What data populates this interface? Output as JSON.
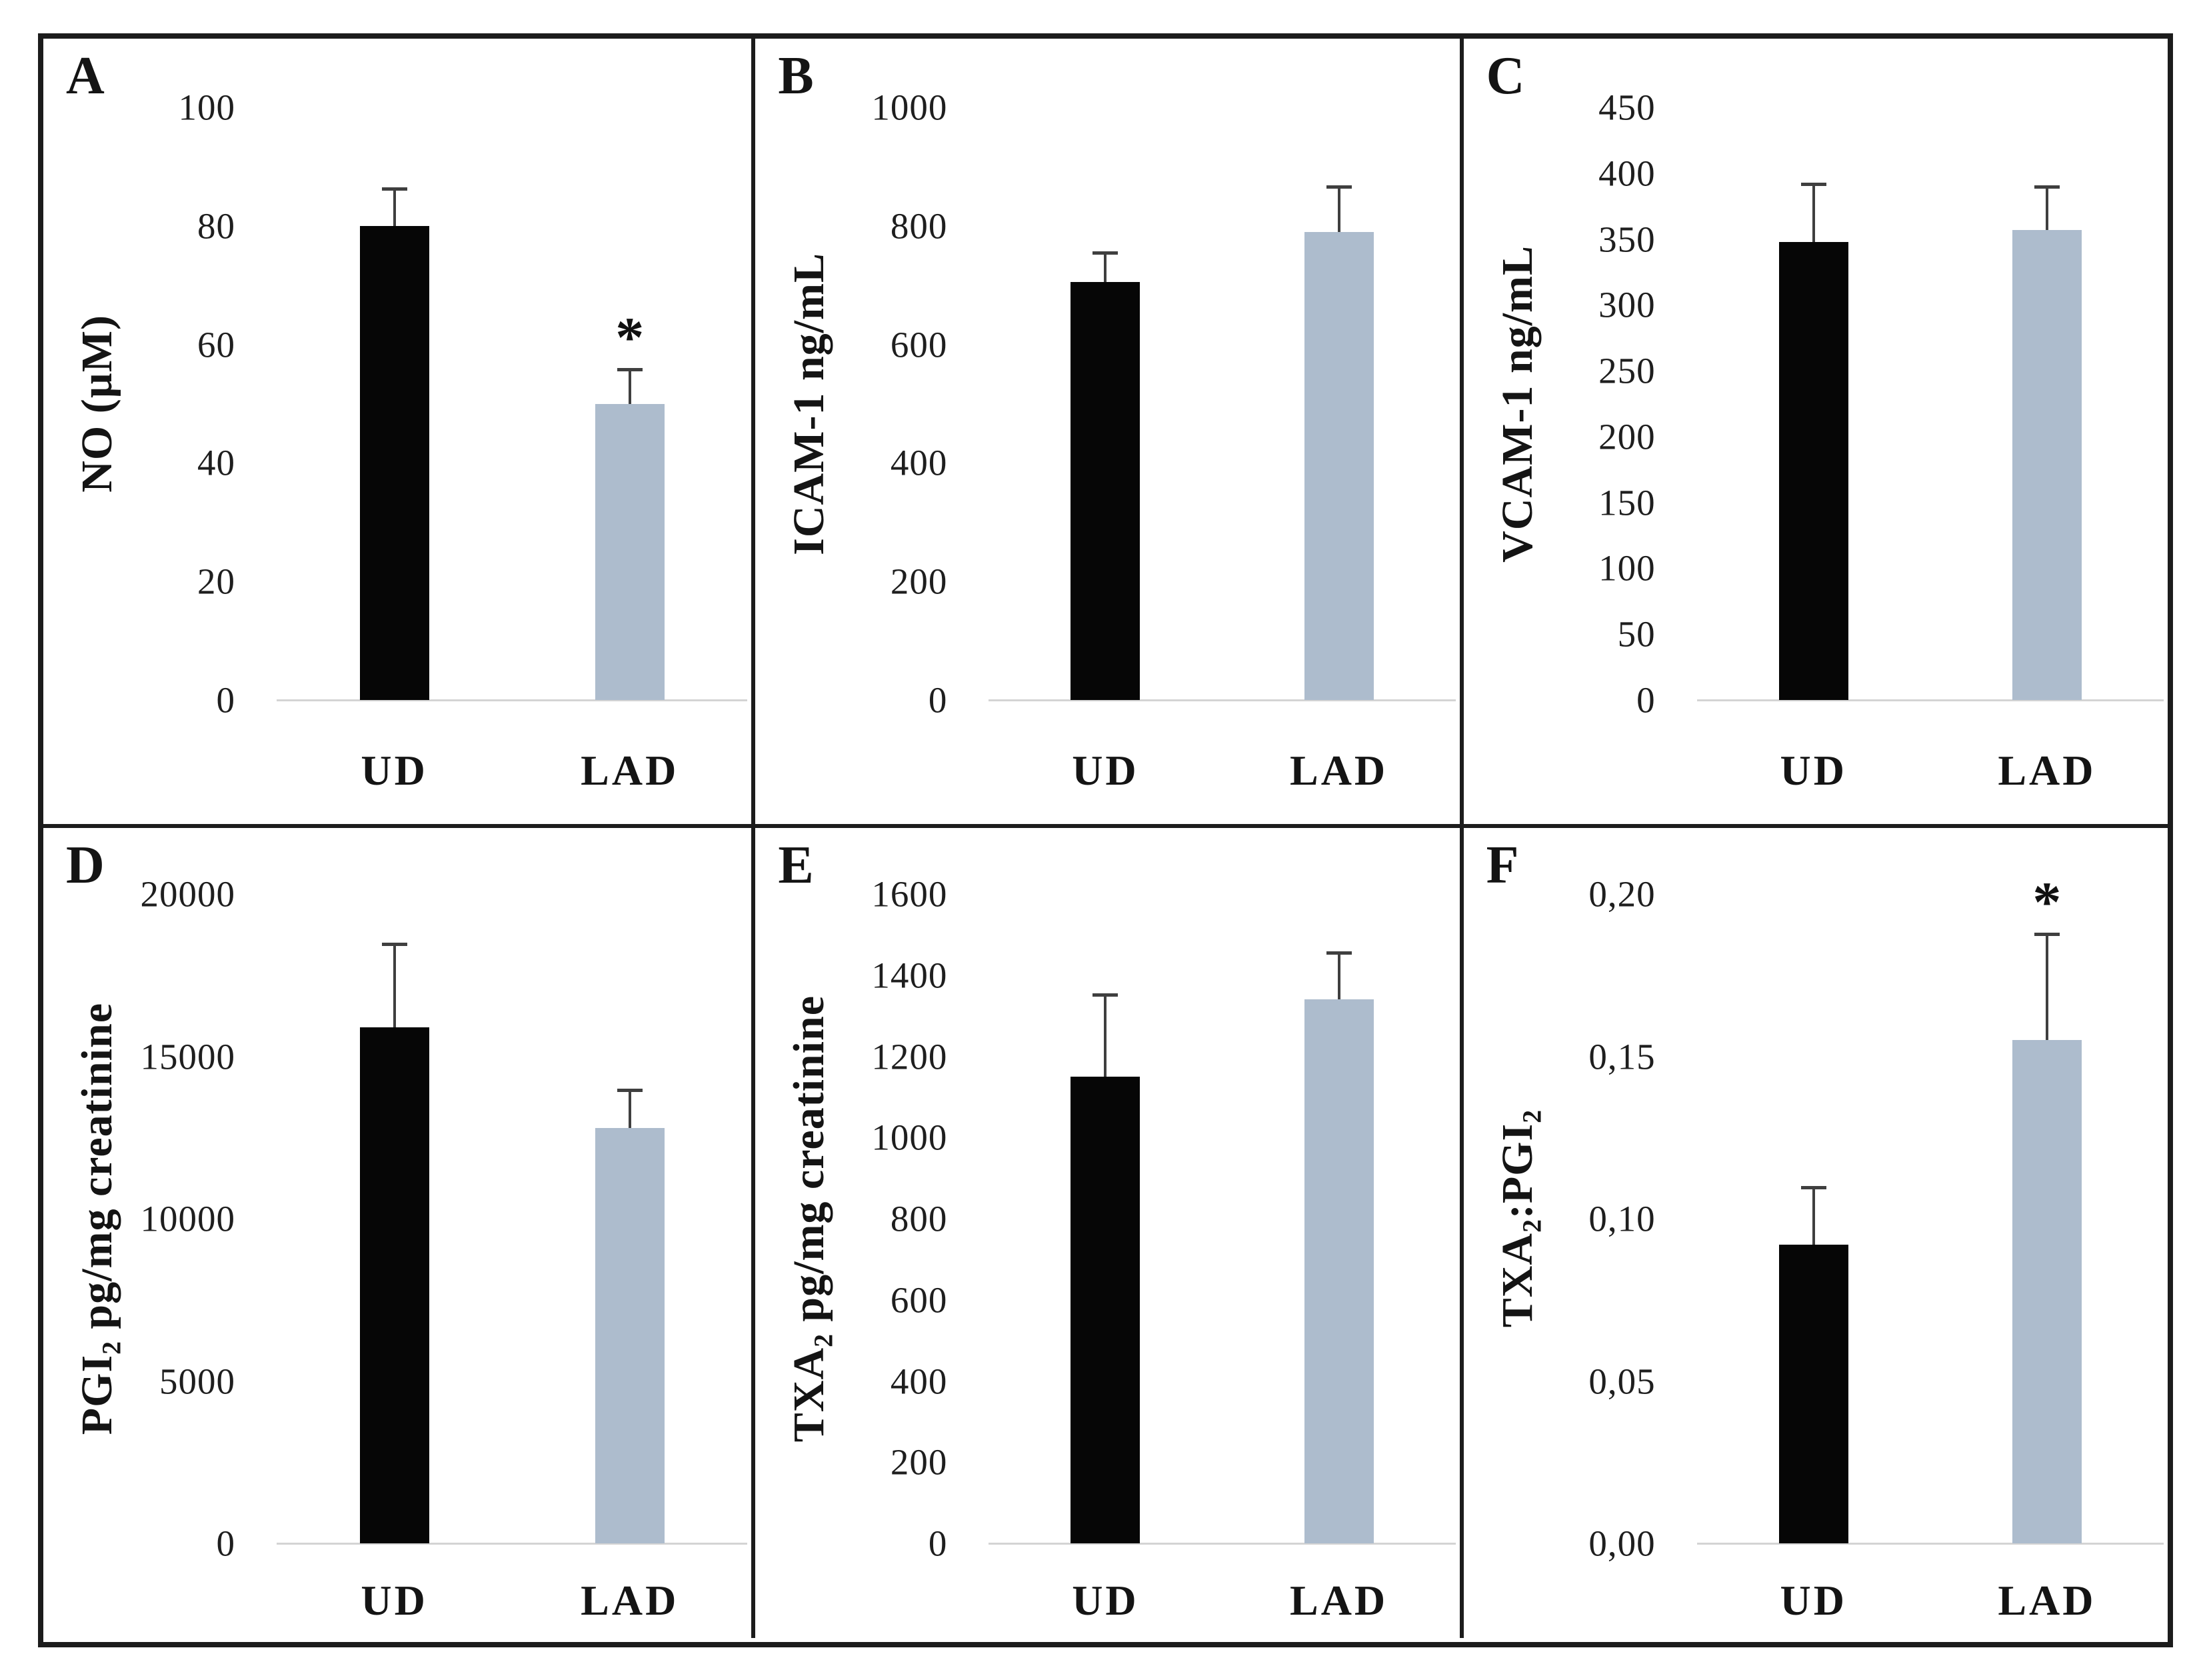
{
  "figure": {
    "groups": [
      "UD",
      "LAD"
    ],
    "significance_marker": "*",
    "colors": {
      "ud_bar": "#060606",
      "lad_bar": "#adbccd",
      "error_bar": "#3f3f3f",
      "baseline": "#d4d4d4",
      "border": "#1c1c1c",
      "background": "#ffffff",
      "text": "#141414"
    }
  },
  "chart_data": [
    {
      "id": "A",
      "type": "bar",
      "ylabel": "NO (µM)",
      "categories": [
        "UD",
        "LAD"
      ],
      "values": [
        80,
        50
      ],
      "errors": [
        6.5,
        6
      ],
      "significant": [
        false,
        true
      ],
      "ylim": [
        0,
        100
      ],
      "ytick_step": 20,
      "yticks": [
        "100",
        "80",
        "60",
        "40",
        "20",
        "0"
      ],
      "grid": false,
      "legend": "none"
    },
    {
      "id": "B",
      "type": "bar",
      "ylabel": "ICAM-1 ng/mL",
      "categories": [
        "UD",
        "LAD"
      ],
      "values": [
        705,
        790
      ],
      "errors": [
        52,
        78
      ],
      "significant": [
        false,
        false
      ],
      "ylim": [
        0,
        1000
      ],
      "ytick_step": 200,
      "yticks": [
        "1000",
        "800",
        "600",
        "400",
        "200",
        "0"
      ],
      "grid": false,
      "legend": "none"
    },
    {
      "id": "C",
      "type": "bar",
      "ylabel": "VCAM-1 ng/mL",
      "categories": [
        "UD",
        "LAD"
      ],
      "values": [
        348,
        357
      ],
      "errors": [
        45,
        34
      ],
      "significant": [
        false,
        false
      ],
      "ylim": [
        0,
        450
      ],
      "ytick_step": 50,
      "yticks": [
        "450",
        "400",
        "350",
        "300",
        "250",
        "200",
        "150",
        "100",
        "50",
        "0"
      ],
      "grid": false,
      "legend": "none"
    },
    {
      "id": "D",
      "type": "bar",
      "ylabel": "PGI₂ pg/mg creatinine",
      "categories": [
        "UD",
        "LAD"
      ],
      "values": [
        15900,
        12800
      ],
      "errors": [
        2600,
        1200
      ],
      "significant": [
        false,
        false
      ],
      "ylim": [
        0,
        20000
      ],
      "ytick_step": 5000,
      "yticks": [
        "20000",
        "15000",
        "10000",
        "5000",
        "0"
      ],
      "grid": false,
      "legend": "none"
    },
    {
      "id": "E",
      "type": "bar",
      "ylabel": "TXA₂ pg/mg creatinine",
      "categories": [
        "UD",
        "LAD"
      ],
      "values": [
        1150,
        1340
      ],
      "errors": [
        205,
        118
      ],
      "significant": [
        false,
        false
      ],
      "ylim": [
        0,
        1600
      ],
      "ytick_step": 200,
      "yticks": [
        "1600",
        "1400",
        "1200",
        "1000",
        "800",
        "600",
        "400",
        "200",
        "0"
      ],
      "grid": false,
      "legend": "none"
    },
    {
      "id": "F",
      "type": "bar",
      "ylabel": "TXA₂:PGI₂",
      "categories": [
        "UD",
        "LAD"
      ],
      "values": [
        0.092,
        0.155
      ],
      "errors": [
        0.018,
        0.033
      ],
      "significant": [
        false,
        true
      ],
      "ylim": [
        0,
        0.2
      ],
      "ytick_step": 0.05,
      "yticks": [
        "0,20",
        "0,15",
        "0,10",
        "0,05",
        "0,00"
      ],
      "decimal_separator": ",",
      "grid": false,
      "legend": "none"
    }
  ]
}
